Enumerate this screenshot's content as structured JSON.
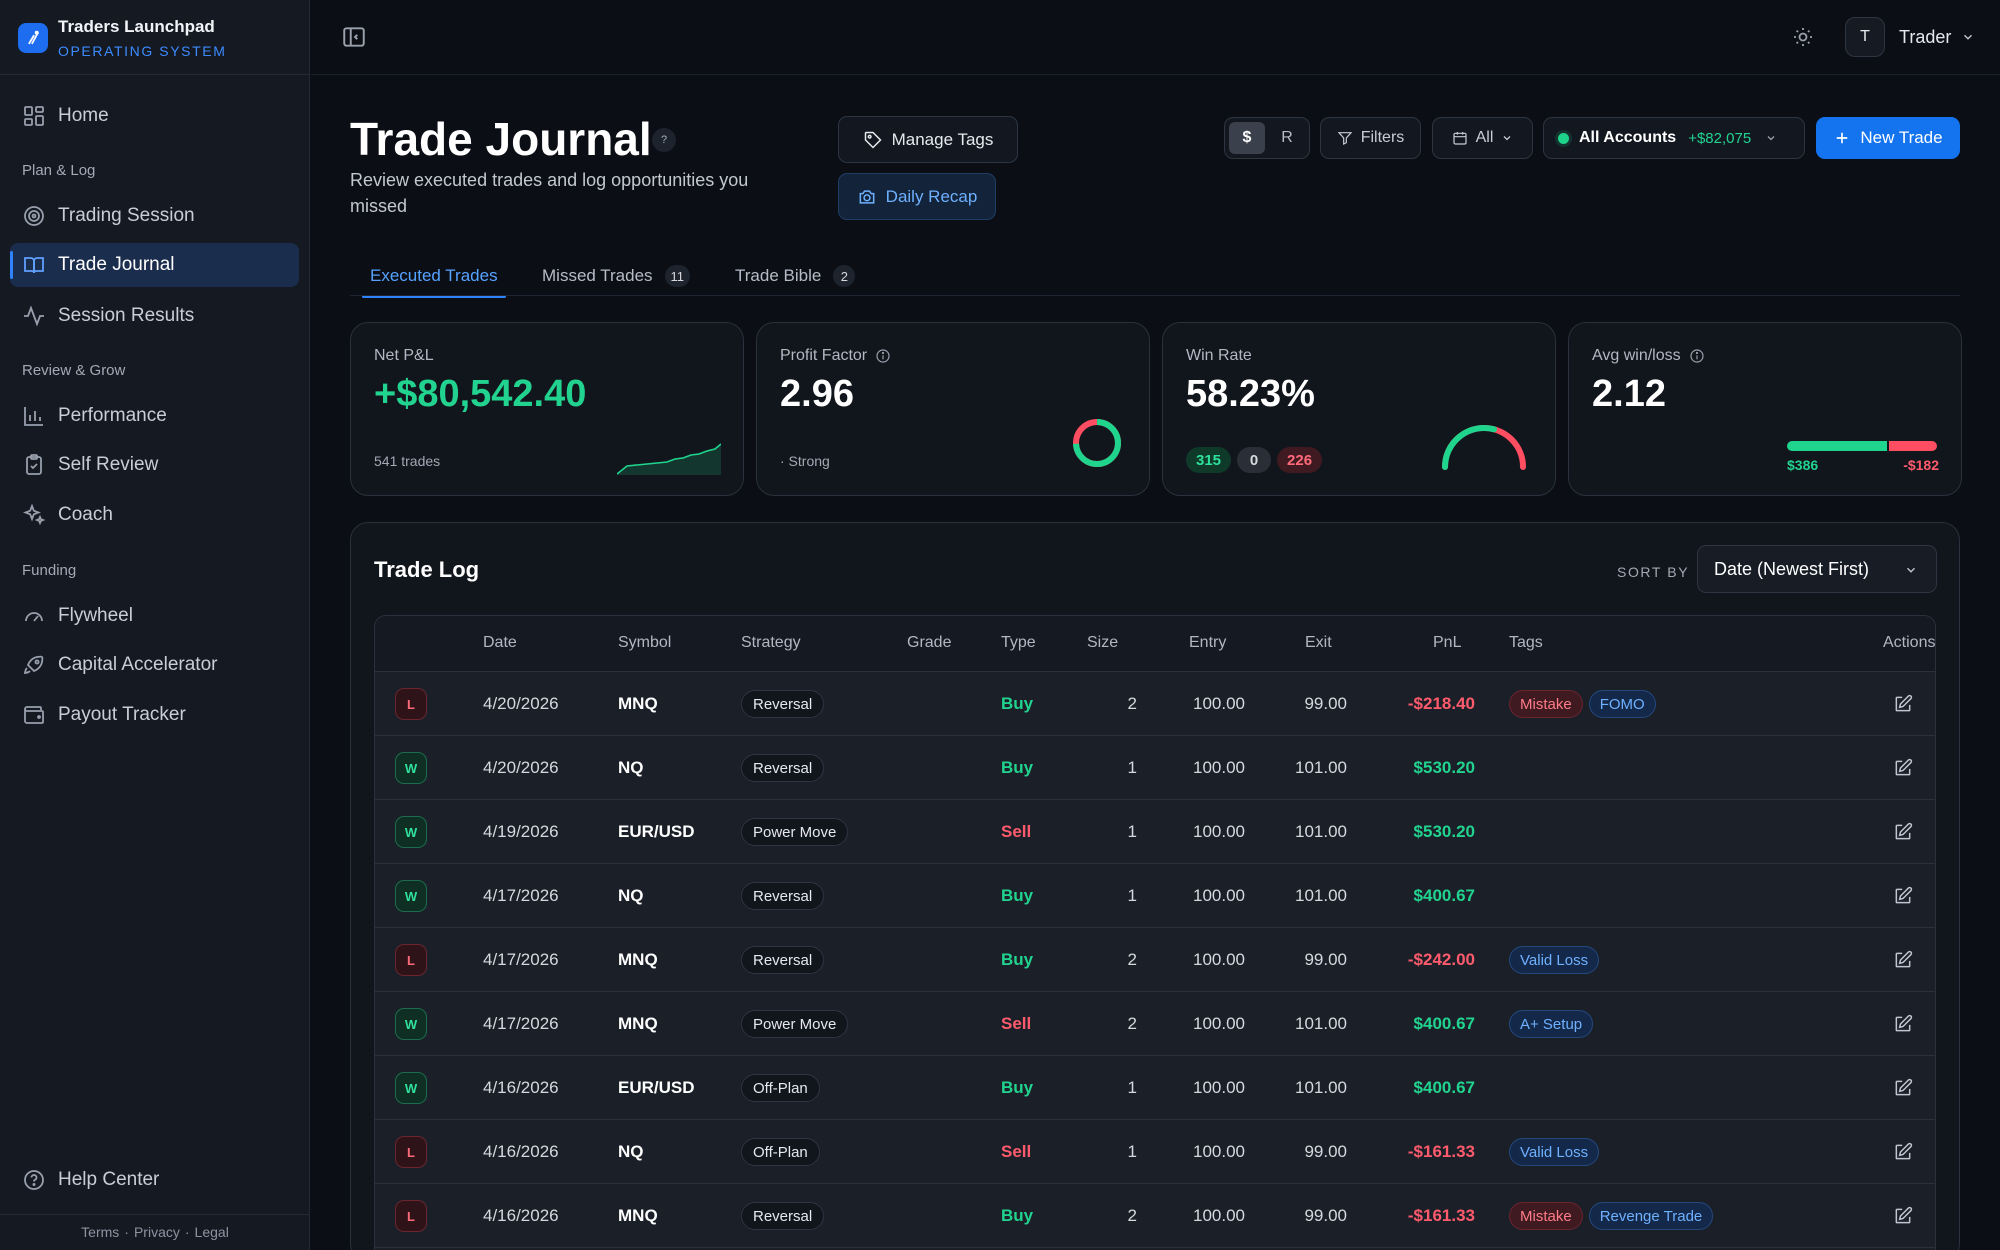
{
  "brand": {
    "name": "Traders Launchpad",
    "subtitle": "OPERATING SYSTEM"
  },
  "sidebar": {
    "home": "Home",
    "sections": [
      {
        "label": "Plan & Log",
        "items": [
          "Trading Session",
          "Trade Journal",
          "Session Results"
        ]
      },
      {
        "label": "Review & Grow",
        "items": [
          "Performance",
          "Self Review",
          "Coach"
        ]
      },
      {
        "label": "Funding",
        "items": [
          "Flywheel",
          "Capital Accelerator",
          "Payout Tracker"
        ]
      }
    ],
    "active_item": "Trade Journal",
    "help": "Help Center",
    "footer": [
      "Terms",
      "Privacy",
      "Legal"
    ]
  },
  "topbar": {
    "user_initial": "T",
    "user_name": "Trader"
  },
  "header": {
    "title": "Trade Journal",
    "help_glyph": "?",
    "subtitle": "Review executed trades and log opportunities you missed",
    "manage_tags": "Manage Tags",
    "daily_recap": "Daily Recap",
    "currency_toggle": {
      "options": [
        "$",
        "R"
      ],
      "selected": "$"
    },
    "filters": "Filters",
    "range": "All",
    "accounts_label": "All Accounts",
    "accounts_total": "+$82,075",
    "new_trade": "New Trade"
  },
  "tabs": [
    {
      "label": "Executed Trades",
      "count": null,
      "active": true
    },
    {
      "label": "Missed Trades",
      "count": "11",
      "active": false
    },
    {
      "label": "Trade Bible",
      "count": "2",
      "active": false
    }
  ],
  "stats": {
    "net_pnl": {
      "label": "Net P&L",
      "value": "+$80,542.40",
      "foot": "541 trades"
    },
    "profit_factor": {
      "label": "Profit Factor",
      "value": "2.96",
      "foot": "· Strong"
    },
    "win_rate": {
      "label": "Win Rate",
      "value": "58.23%",
      "wins": "315",
      "breakeven": "0",
      "losses": "226",
      "win_fraction": 0.5823
    },
    "avg_win_loss": {
      "label": "Avg win/loss",
      "value": "2.12",
      "avg_win": "$386",
      "avg_loss": "-$182"
    }
  },
  "trade_log": {
    "title": "Trade Log",
    "sort_label": "SORT BY",
    "sort_value": "Date (Newest First)",
    "columns": [
      "Date",
      "Symbol",
      "Strategy",
      "Grade",
      "Type",
      "Size",
      "Entry",
      "Exit",
      "PnL",
      "Tags",
      "Actions"
    ],
    "rows": [
      {
        "result": "L",
        "date": "4/20/2026",
        "symbol": "MNQ",
        "strategy": "Reversal",
        "grade": "",
        "type": "Buy",
        "size": "2",
        "entry": "100.00",
        "exit": "99.00",
        "pnl": "-$218.40",
        "tags": [
          {
            "label": "Mistake",
            "color": "red"
          },
          {
            "label": "FOMO",
            "color": "blue"
          }
        ]
      },
      {
        "result": "W",
        "date": "4/20/2026",
        "symbol": "NQ",
        "strategy": "Reversal",
        "grade": "",
        "type": "Buy",
        "size": "1",
        "entry": "100.00",
        "exit": "101.00",
        "pnl": "$530.20",
        "tags": []
      },
      {
        "result": "W",
        "date": "4/19/2026",
        "symbol": "EUR/USD",
        "strategy": "Power Move",
        "grade": "",
        "type": "Sell",
        "size": "1",
        "entry": "100.00",
        "exit": "101.00",
        "pnl": "$530.20",
        "tags": []
      },
      {
        "result": "W",
        "date": "4/17/2026",
        "symbol": "NQ",
        "strategy": "Reversal",
        "grade": "",
        "type": "Buy",
        "size": "1",
        "entry": "100.00",
        "exit": "101.00",
        "pnl": "$400.67",
        "tags": []
      },
      {
        "result": "L",
        "date": "4/17/2026",
        "symbol": "MNQ",
        "strategy": "Reversal",
        "grade": "",
        "type": "Buy",
        "size": "2",
        "entry": "100.00",
        "exit": "99.00",
        "pnl": "-$242.00",
        "tags": [
          {
            "label": "Valid Loss",
            "color": "blue"
          }
        ]
      },
      {
        "result": "W",
        "date": "4/17/2026",
        "symbol": "MNQ",
        "strategy": "Power Move",
        "grade": "",
        "type": "Sell",
        "size": "2",
        "entry": "100.00",
        "exit": "101.00",
        "pnl": "$400.67",
        "tags": [
          {
            "label": "A+ Setup",
            "color": "blue"
          }
        ]
      },
      {
        "result": "W",
        "date": "4/16/2026",
        "symbol": "EUR/USD",
        "strategy": "Off-Plan",
        "grade": "",
        "type": "Buy",
        "size": "1",
        "entry": "100.00",
        "exit": "101.00",
        "pnl": "$400.67",
        "tags": []
      },
      {
        "result": "L",
        "date": "4/16/2026",
        "symbol": "NQ",
        "strategy": "Off-Plan",
        "grade": "",
        "type": "Sell",
        "size": "1",
        "entry": "100.00",
        "exit": "99.00",
        "pnl": "-$161.33",
        "tags": [
          {
            "label": "Valid Loss",
            "color": "blue"
          }
        ]
      },
      {
        "result": "L",
        "date": "4/16/2026",
        "symbol": "MNQ",
        "strategy": "Reversal",
        "grade": "",
        "type": "Buy",
        "size": "2",
        "entry": "100.00",
        "exit": "99.00",
        "pnl": "-$161.33",
        "tags": [
          {
            "label": "Mistake",
            "color": "red"
          },
          {
            "label": "Revenge Trade",
            "color": "blue"
          }
        ]
      }
    ]
  },
  "colors": {
    "accent": "#1473ef",
    "profit": "#22d38f",
    "loss": "#ff5b6c",
    "background": "#0b0e14"
  }
}
